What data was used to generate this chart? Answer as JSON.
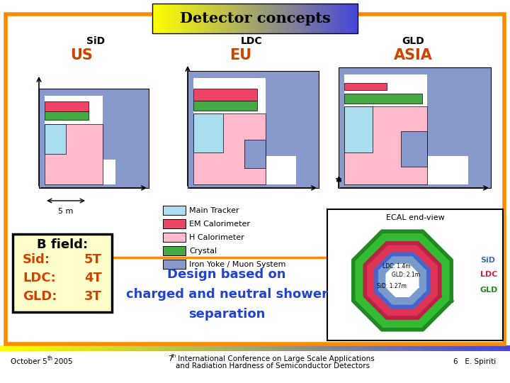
{
  "title": "Detector concepts",
  "border_color": "#ff8c00",
  "border_linewidth": 4,
  "background_color": "#ffffff",
  "region_color": "#cc4400",
  "b_field_title": "B field:",
  "b_field_entries": [
    {
      "label": "Sid:",
      "value": "5T"
    },
    {
      "label": "LDC:",
      "value": "4T"
    },
    {
      "label": "GLD:",
      "value": "3T"
    }
  ],
  "legend_items": [
    {
      "label": "Main Tracker",
      "color": "#aaddee"
    },
    {
      "label": "EM Calorimeter",
      "color": "#ee4466"
    },
    {
      "label": "H Calorimeter",
      "color": "#ffbbcc"
    },
    {
      "label": "Crystal",
      "color": "#44aa44"
    },
    {
      "label": "Iron Yoke / Muon System",
      "color": "#8899cc"
    }
  ],
  "design_text": "Design based on\ncharged and neutral shower\nseparation",
  "design_text_color": "#2244cc",
  "iron_color": "#8899cc",
  "crystal_color": "#44aa44",
  "h_cal_color": "#ffbbcc",
  "em_cal_color": "#ee4466",
  "tracker_color": "#aaddee",
  "ecal_text": "ECAL end-view",
  "ecal_sid_color": "#4466cc",
  "ecal_ldc_color": "#cc2244",
  "ecal_gld_color": "#228822"
}
